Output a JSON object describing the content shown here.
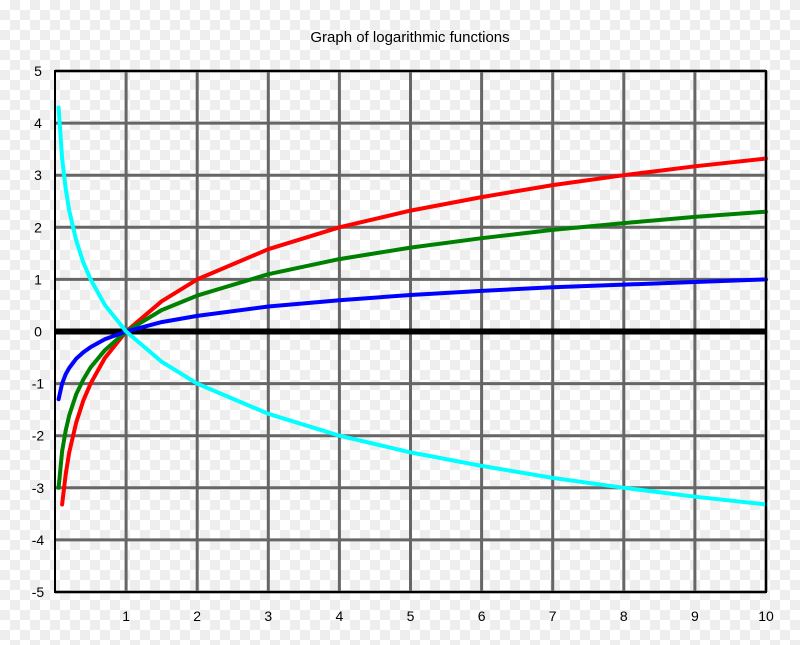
{
  "chart_data": {
    "type": "line",
    "title": "Graph of logarithmic functions",
    "xlabel": "",
    "ylabel": "",
    "xlim": [
      0,
      10
    ],
    "ylim": [
      -5,
      5
    ],
    "x_ticks": [
      1,
      2,
      3,
      4,
      5,
      6,
      7,
      8,
      9,
      10
    ],
    "y_ticks": [
      5,
      4,
      3,
      2,
      1,
      0,
      -1,
      -2,
      -3,
      -4,
      -5
    ],
    "grid": true,
    "legend": "none",
    "axis_color": "#000000",
    "grid_color": "#666666",
    "series": [
      {
        "color": "#ff0000",
        "x": [
          0.1,
          0.15,
          0.2,
          0.3,
          0.4,
          0.5,
          0.7,
          1,
          1.5,
          2,
          3,
          4,
          5,
          6,
          7,
          8,
          9,
          10
        ],
        "y": [
          -3.32,
          -2.74,
          -2.32,
          -1.74,
          -1.32,
          -1.0,
          -0.51,
          0,
          0.58,
          1.0,
          1.58,
          2.0,
          2.32,
          2.58,
          2.81,
          3.0,
          3.17,
          3.32
        ]
      },
      {
        "color": "#008000",
        "x": [
          0.05,
          0.1,
          0.15,
          0.2,
          0.3,
          0.4,
          0.5,
          0.7,
          1,
          1.5,
          2,
          3,
          4,
          5,
          6,
          7,
          8,
          9,
          10
        ],
        "y": [
          -3.0,
          -2.3,
          -1.9,
          -1.61,
          -1.2,
          -0.92,
          -0.69,
          -0.36,
          0,
          0.41,
          0.69,
          1.1,
          1.39,
          1.61,
          1.79,
          1.95,
          2.08,
          2.2,
          2.3
        ]
      },
      {
        "color": "#0000ff",
        "x": [
          0.05,
          0.1,
          0.15,
          0.2,
          0.3,
          0.4,
          0.5,
          0.7,
          1,
          1.5,
          2,
          3,
          4,
          5,
          6,
          7,
          8,
          9,
          10
        ],
        "y": [
          -1.3,
          -1.0,
          -0.82,
          -0.7,
          -0.52,
          -0.4,
          -0.3,
          -0.15,
          0,
          0.18,
          0.3,
          0.48,
          0.6,
          0.7,
          0.78,
          0.85,
          0.9,
          0.95,
          1.0
        ]
      },
      {
        "color": "#00ffff",
        "x": [
          0.05,
          0.1,
          0.15,
          0.2,
          0.3,
          0.4,
          0.5,
          0.7,
          1,
          1.5,
          2,
          3,
          4,
          5,
          6,
          7,
          8,
          9,
          10
        ],
        "y": [
          4.3,
          3.32,
          2.74,
          2.32,
          1.74,
          1.32,
          1.0,
          0.51,
          0,
          -0.58,
          -1.0,
          -1.58,
          -2.0,
          -2.32,
          -2.58,
          -2.81,
          -3.0,
          -3.17,
          -3.32
        ]
      }
    ]
  }
}
